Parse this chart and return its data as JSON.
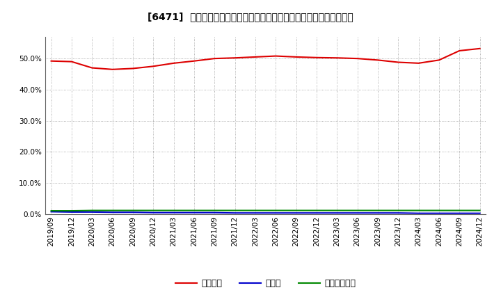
{
  "title": "[6471]  自己資本、のれん、繰延税金資産の総資産に対する比率の推移",
  "x_labels": [
    "2019/09",
    "2019/12",
    "2020/03",
    "2020/06",
    "2020/09",
    "2020/12",
    "2021/03",
    "2021/06",
    "2021/09",
    "2021/12",
    "2022/03",
    "2022/06",
    "2022/09",
    "2022/12",
    "2023/03",
    "2023/06",
    "2023/09",
    "2023/12",
    "2024/03",
    "2024/06",
    "2024/09",
    "2024/12"
  ],
  "equity_ratio": [
    49.2,
    49.0,
    47.0,
    46.5,
    46.8,
    47.5,
    48.5,
    49.2,
    50.0,
    50.2,
    50.5,
    50.8,
    50.5,
    50.3,
    50.2,
    50.0,
    49.5,
    48.8,
    48.5,
    49.5,
    52.5,
    53.2
  ],
  "goodwill_ratio": [
    0.8,
    0.7,
    0.7,
    0.6,
    0.6,
    0.5,
    0.5,
    0.5,
    0.5,
    0.4,
    0.4,
    0.4,
    0.4,
    0.4,
    0.4,
    0.4,
    0.4,
    0.4,
    0.3,
    0.3,
    0.3,
    0.3
  ],
  "deferred_tax_ratio": [
    1.1,
    1.1,
    1.2,
    1.2,
    1.2,
    1.2,
    1.2,
    1.2,
    1.2,
    1.2,
    1.2,
    1.2,
    1.2,
    1.2,
    1.2,
    1.2,
    1.2,
    1.2,
    1.2,
    1.2,
    1.2,
    1.2
  ],
  "equity_color": "#dd0000",
  "goodwill_color": "#0000cc",
  "deferred_tax_color": "#008800",
  "legend_equity": "自己資本",
  "legend_goodwill": "のれん",
  "legend_deferred_tax": "繰延税金資産",
  "ylim_min": 0.0,
  "ylim_max": 57.0,
  "yticks": [
    0.0,
    10.0,
    20.0,
    30.0,
    40.0,
    50.0
  ],
  "background_color": "#ffffff",
  "plot_bg_color": "#ffffff",
  "grid_color": "#999999",
  "title_fontsize": 10,
  "legend_fontsize": 9,
  "tick_fontsize": 7.5
}
